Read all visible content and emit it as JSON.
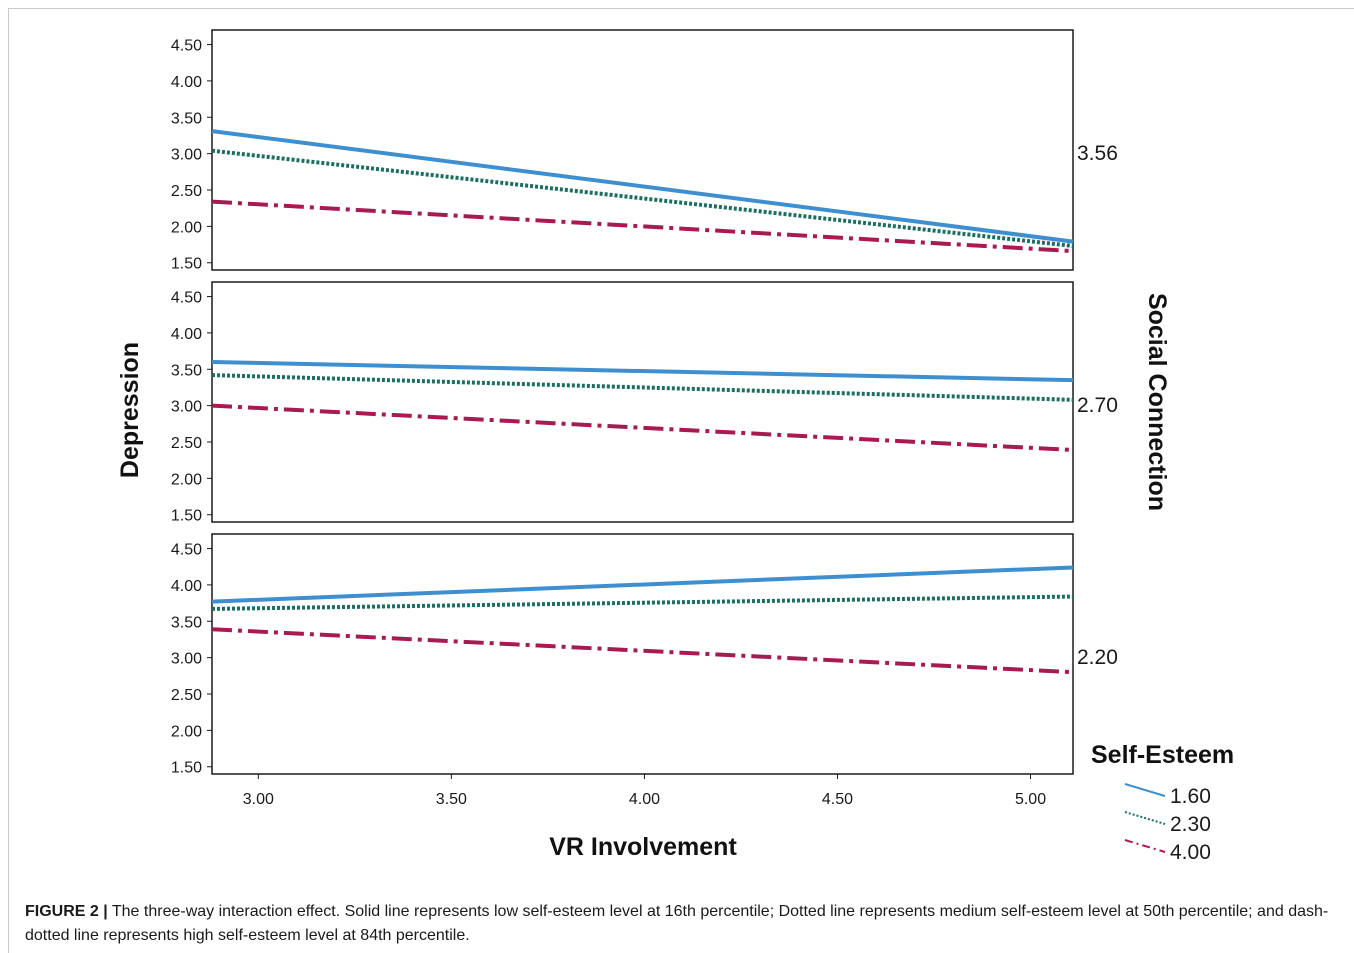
{
  "chart_data": {
    "type": "line",
    "xlabel": "VR Involvement",
    "ylabel": "Depression",
    "panel_label": "Social Connection",
    "xlim": [
      2.88,
      5.11
    ],
    "ylim": [
      1.4,
      4.7
    ],
    "x_ticks": [
      "3.00",
      "3.50",
      "4.00",
      "4.50",
      "5.00"
    ],
    "y_ticks": [
      "1.50",
      "2.00",
      "2.50",
      "3.00",
      "3.50",
      "4.00",
      "4.50"
    ],
    "legend_title": "Self-Esteem",
    "legend_placement": "bottom-right",
    "series": [
      {
        "name": "1.60",
        "style": "solid",
        "color": "#3d8fd0"
      },
      {
        "name": "2.30",
        "style": "dotted",
        "color": "#1c6e62"
      },
      {
        "name": "4.00",
        "style": "dashdot",
        "color": "#a81a52"
      }
    ],
    "panels": [
      {
        "label": "3.56",
        "lines": [
          {
            "series": "1.60",
            "x": [
              2.88,
              5.11
            ],
            "y": [
              3.31,
              1.79
            ]
          },
          {
            "series": "2.30",
            "x": [
              2.88,
              5.11
            ],
            "y": [
              3.04,
              1.73
            ]
          },
          {
            "series": "4.00",
            "x": [
              2.88,
              5.11
            ],
            "y": [
              2.34,
              1.66
            ]
          }
        ]
      },
      {
        "label": "2.70",
        "lines": [
          {
            "series": "1.60",
            "x": [
              2.88,
              5.11
            ],
            "y": [
              3.6,
              3.35
            ]
          },
          {
            "series": "2.30",
            "x": [
              2.88,
              5.11
            ],
            "y": [
              3.42,
              3.08
            ]
          },
          {
            "series": "4.00",
            "x": [
              2.88,
              5.11
            ],
            "y": [
              3.0,
              2.39
            ]
          }
        ]
      },
      {
        "label": "2.20",
        "lines": [
          {
            "series": "1.60",
            "x": [
              2.88,
              5.11
            ],
            "y": [
              3.77,
              4.24
            ]
          },
          {
            "series": "2.30",
            "x": [
              2.88,
              5.11
            ],
            "y": [
              3.67,
              3.84
            ]
          },
          {
            "series": "4.00",
            "x": [
              2.88,
              5.11
            ],
            "y": [
              3.39,
              2.8
            ]
          }
        ]
      }
    ]
  },
  "caption": {
    "label": "FIGURE 2 |",
    "text": "The three-way interaction effect. Solid line represents low self-esteem level at 16th percentile; Dotted line represents medium self-esteem level at 50th percentile; and dash-dotted line represents high self-esteem level at 84th percentile."
  }
}
